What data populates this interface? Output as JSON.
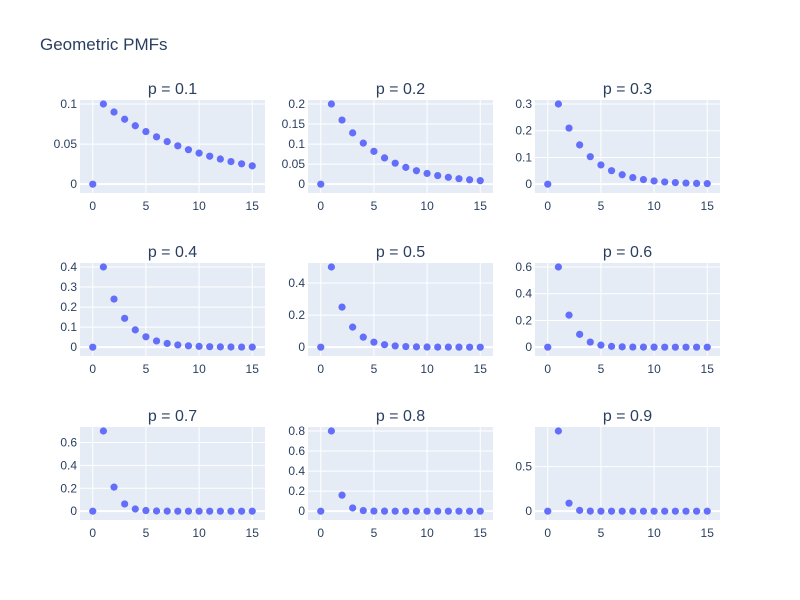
{
  "figure": {
    "title": "Geometric PMFs",
    "background_color": "#ffffff",
    "plot_background_color": "#e5ecf6",
    "grid_color": "#ffffff",
    "text_color": "#2a3f5f",
    "marker_color": "#636efa"
  },
  "chart_data": [
    {
      "type": "scatter",
      "title": "p = 0.1",
      "xlabel": "",
      "ylabel": "",
      "x": [
        0,
        1,
        2,
        3,
        4,
        5,
        6,
        7,
        8,
        9,
        10,
        11,
        12,
        13,
        14,
        15
      ],
      "y": [
        0,
        0.1,
        0.09,
        0.081,
        0.0729,
        0.06561,
        0.059049,
        0.0531441,
        0.04782969,
        0.043046721,
        0.0387420489,
        0.03486784401,
        0.031381059609,
        0.0282429536481,
        0.02541865828329,
        0.022876792454961
      ],
      "xlim": [
        -1.2,
        16.2
      ],
      "ylim": [
        -0.011,
        0.105
      ],
      "x_ticks": [
        {
          "value": 0,
          "label": "0"
        },
        {
          "value": 5,
          "label": "5"
        },
        {
          "value": 10,
          "label": "10"
        },
        {
          "value": 15,
          "label": "15"
        }
      ],
      "y_ticks": [
        {
          "value": 0,
          "label": "0"
        },
        {
          "value": 0.05,
          "label": "0.05"
        },
        {
          "value": 0.1,
          "label": "0.1"
        }
      ],
      "grid": true
    },
    {
      "type": "scatter",
      "title": "p = 0.2",
      "xlabel": "",
      "ylabel": "",
      "x": [
        0,
        1,
        2,
        3,
        4,
        5,
        6,
        7,
        8,
        9,
        10,
        11,
        12,
        13,
        14,
        15
      ],
      "y": [
        0,
        0.2,
        0.16,
        0.128,
        0.1024,
        0.08192,
        0.065536,
        0.0524288,
        0.04194304,
        0.033554432,
        0.0268435456,
        0.02147483648,
        0.017179869184,
        0.0137438953472,
        0.01099511627776,
        0.008796093022208
      ],
      "xlim": [
        -1.2,
        16.2
      ],
      "ylim": [
        -0.022,
        0.21
      ],
      "x_ticks": [
        {
          "value": 0,
          "label": "0"
        },
        {
          "value": 5,
          "label": "5"
        },
        {
          "value": 10,
          "label": "10"
        },
        {
          "value": 15,
          "label": "15"
        }
      ],
      "y_ticks": [
        {
          "value": 0,
          "label": "0"
        },
        {
          "value": 0.05,
          "label": "0.05"
        },
        {
          "value": 0.1,
          "label": "0.1"
        },
        {
          "value": 0.15,
          "label": "0.15"
        },
        {
          "value": 0.2,
          "label": "0.2"
        }
      ],
      "grid": true
    },
    {
      "type": "scatter",
      "title": "p = 0.3",
      "xlabel": "",
      "ylabel": "",
      "x": [
        0,
        1,
        2,
        3,
        4,
        5,
        6,
        7,
        8,
        9,
        10,
        11,
        12,
        13,
        14,
        15
      ],
      "y": [
        0,
        0.3,
        0.21,
        0.147,
        0.1029,
        0.07203,
        0.050421,
        0.0352947,
        0.02470629,
        0.017294403,
        0.0121060821,
        0.00847425747,
        0.005931980229,
        0.0041523861603,
        0.00290667031221,
        0.002034669218547
      ],
      "xlim": [
        -1.2,
        16.2
      ],
      "ylim": [
        -0.033,
        0.315
      ],
      "x_ticks": [
        {
          "value": 0,
          "label": "0"
        },
        {
          "value": 5,
          "label": "5"
        },
        {
          "value": 10,
          "label": "10"
        },
        {
          "value": 15,
          "label": "15"
        }
      ],
      "y_ticks": [
        {
          "value": 0,
          "label": "0"
        },
        {
          "value": 0.1,
          "label": "0.1"
        },
        {
          "value": 0.2,
          "label": "0.2"
        },
        {
          "value": 0.3,
          "label": "0.3"
        }
      ],
      "grid": true
    },
    {
      "type": "scatter",
      "title": "p = 0.4",
      "xlabel": "",
      "ylabel": "",
      "x": [
        0,
        1,
        2,
        3,
        4,
        5,
        6,
        7,
        8,
        9,
        10,
        11,
        12,
        13,
        14,
        15
      ],
      "y": [
        0,
        0.4,
        0.24,
        0.144,
        0.0864,
        0.05184,
        0.031104,
        0.0186624,
        0.01119744,
        0.006718464,
        0.0040310784,
        0.00241864704,
        0.001451188224,
        0.0008707129344,
        0.00052242776064,
        0.000313456656384
      ],
      "xlim": [
        -1.2,
        16.2
      ],
      "ylim": [
        -0.044,
        0.42
      ],
      "x_ticks": [
        {
          "value": 0,
          "label": "0"
        },
        {
          "value": 5,
          "label": "5"
        },
        {
          "value": 10,
          "label": "10"
        },
        {
          "value": 15,
          "label": "15"
        }
      ],
      "y_ticks": [
        {
          "value": 0,
          "label": "0"
        },
        {
          "value": 0.1,
          "label": "0.1"
        },
        {
          "value": 0.2,
          "label": "0.2"
        },
        {
          "value": 0.3,
          "label": "0.3"
        },
        {
          "value": 0.4,
          "label": "0.4"
        }
      ],
      "grid": true
    },
    {
      "type": "scatter",
      "title": "p = 0.5",
      "xlabel": "",
      "ylabel": "",
      "x": [
        0,
        1,
        2,
        3,
        4,
        5,
        6,
        7,
        8,
        9,
        10,
        11,
        12,
        13,
        14,
        15
      ],
      "y": [
        0,
        0.5,
        0.25,
        0.125,
        0.0625,
        0.03125,
        0.015625,
        0.0078125,
        0.00390625,
        0.001953125,
        0.0009765625,
        0.00048828125,
        0.000244140625,
        0.0001220703125,
        6.103515625e-05,
        3.0517578125e-05
      ],
      "xlim": [
        -1.2,
        16.2
      ],
      "ylim": [
        -0.055,
        0.525
      ],
      "x_ticks": [
        {
          "value": 0,
          "label": "0"
        },
        {
          "value": 5,
          "label": "5"
        },
        {
          "value": 10,
          "label": "10"
        },
        {
          "value": 15,
          "label": "15"
        }
      ],
      "y_ticks": [
        {
          "value": 0,
          "label": "0"
        },
        {
          "value": 0.2,
          "label": "0.2"
        },
        {
          "value": 0.4,
          "label": "0.4"
        }
      ],
      "grid": true
    },
    {
      "type": "scatter",
      "title": "p = 0.6",
      "xlabel": "",
      "ylabel": "",
      "x": [
        0,
        1,
        2,
        3,
        4,
        5,
        6,
        7,
        8,
        9,
        10,
        11,
        12,
        13,
        14,
        15
      ],
      "y": [
        0,
        0.6,
        0.24,
        0.096,
        0.0384,
        0.01536,
        0.006144,
        0.0024576,
        0.00098304,
        0.000393216,
        0.0001572864,
        6.291456e-05,
        2.5165824e-05,
        1.00663296e-05,
        4.02653184e-06,
        1.610612736e-06
      ],
      "xlim": [
        -1.2,
        16.2
      ],
      "ylim": [
        -0.066,
        0.63
      ],
      "x_ticks": [
        {
          "value": 0,
          "label": "0"
        },
        {
          "value": 5,
          "label": "5"
        },
        {
          "value": 10,
          "label": "10"
        },
        {
          "value": 15,
          "label": "15"
        }
      ],
      "y_ticks": [
        {
          "value": 0,
          "label": "0"
        },
        {
          "value": 0.2,
          "label": "0.2"
        },
        {
          "value": 0.4,
          "label": "0.4"
        },
        {
          "value": 0.6,
          "label": "0.6"
        }
      ],
      "grid": true
    },
    {
      "type": "scatter",
      "title": "p = 0.7",
      "xlabel": "",
      "ylabel": "",
      "x": [
        0,
        1,
        2,
        3,
        4,
        5,
        6,
        7,
        8,
        9,
        10,
        11,
        12,
        13,
        14,
        15
      ],
      "y": [
        0,
        0.7,
        0.21,
        0.063,
        0.0189,
        0.00567,
        0.001701,
        0.0005103,
        0.00015309,
        4.5927e-05,
        1.37781e-05,
        4.13343e-06,
        1.240029e-06,
        3.720087e-07,
        1.1160261e-07,
        3.3480783e-08
      ],
      "xlim": [
        -1.2,
        16.2
      ],
      "ylim": [
        -0.077,
        0.735
      ],
      "x_ticks": [
        {
          "value": 0,
          "label": "0"
        },
        {
          "value": 5,
          "label": "5"
        },
        {
          "value": 10,
          "label": "10"
        },
        {
          "value": 15,
          "label": "15"
        }
      ],
      "y_ticks": [
        {
          "value": 0,
          "label": "0"
        },
        {
          "value": 0.2,
          "label": "0.2"
        },
        {
          "value": 0.4,
          "label": "0.4"
        },
        {
          "value": 0.6,
          "label": "0.6"
        }
      ],
      "grid": true
    },
    {
      "type": "scatter",
      "title": "p = 0.8",
      "xlabel": "",
      "ylabel": "",
      "x": [
        0,
        1,
        2,
        3,
        4,
        5,
        6,
        7,
        8,
        9,
        10,
        11,
        12,
        13,
        14,
        15
      ],
      "y": [
        0,
        0.8,
        0.16,
        0.032,
        0.0064,
        0.00128,
        0.000256,
        5.12e-05,
        1.024e-05,
        2.048e-06,
        4.096e-07,
        8.192e-08,
        1.6384e-08,
        3.2768e-09,
        6.5536e-10,
        1.31072e-10
      ],
      "xlim": [
        -1.2,
        16.2
      ],
      "ylim": [
        -0.088,
        0.84
      ],
      "x_ticks": [
        {
          "value": 0,
          "label": "0"
        },
        {
          "value": 5,
          "label": "5"
        },
        {
          "value": 10,
          "label": "10"
        },
        {
          "value": 15,
          "label": "15"
        }
      ],
      "y_ticks": [
        {
          "value": 0,
          "label": "0"
        },
        {
          "value": 0.2,
          "label": "0.2"
        },
        {
          "value": 0.4,
          "label": "0.4"
        },
        {
          "value": 0.6,
          "label": "0.6"
        },
        {
          "value": 0.8,
          "label": "0.8"
        }
      ],
      "grid": true
    },
    {
      "type": "scatter",
      "title": "p = 0.9",
      "xlabel": "",
      "ylabel": "",
      "x": [
        0,
        1,
        2,
        3,
        4,
        5,
        6,
        7,
        8,
        9,
        10,
        11,
        12,
        13,
        14,
        15
      ],
      "y": [
        0,
        0.9,
        0.09,
        0.009,
        0.0009,
        9e-05,
        9e-06,
        9e-07,
        9e-08,
        9e-09,
        9e-10,
        9e-11,
        9e-12,
        9e-13,
        9e-14,
        9e-15
      ],
      "xlim": [
        -1.2,
        16.2
      ],
      "ylim": [
        -0.099,
        0.945
      ],
      "x_ticks": [
        {
          "value": 0,
          "label": "0"
        },
        {
          "value": 5,
          "label": "5"
        },
        {
          "value": 10,
          "label": "10"
        },
        {
          "value": 15,
          "label": "15"
        }
      ],
      "y_ticks": [
        {
          "value": 0,
          "label": "0"
        },
        {
          "value": 0.5,
          "label": "0.5"
        }
      ],
      "grid": true
    }
  ]
}
